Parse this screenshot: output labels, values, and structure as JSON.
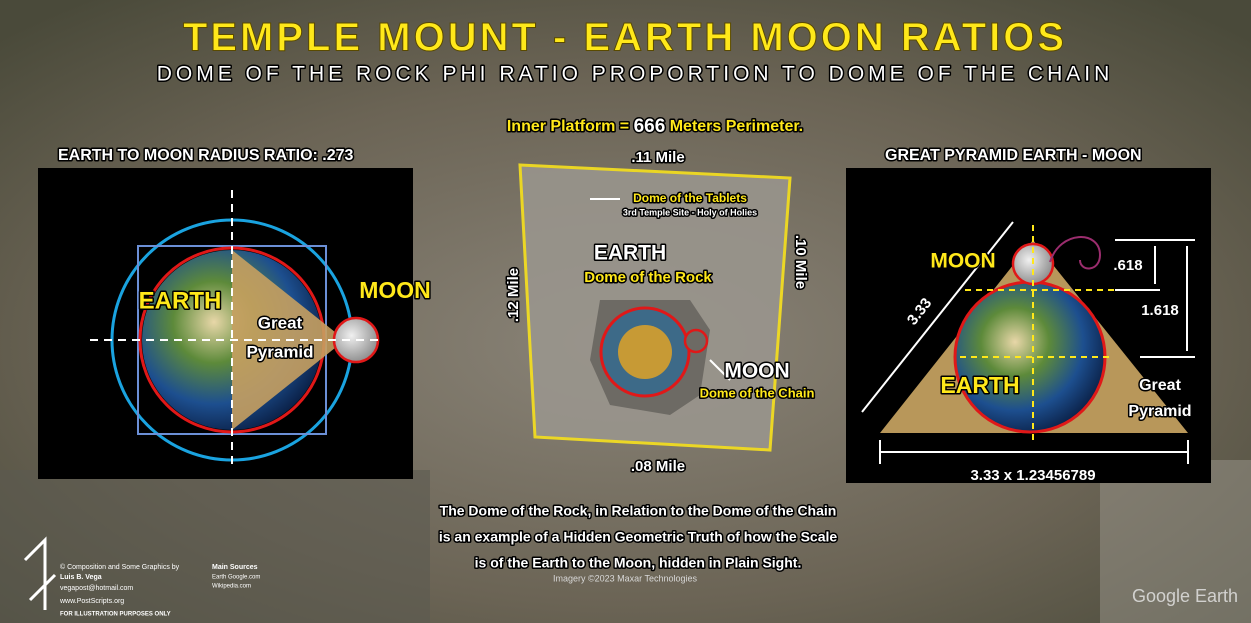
{
  "header": {
    "title": "TEMPLE MOUNT - EARTH MOON RATIOS",
    "subtitle": "DOME OF THE ROCK PHI RATIO PROPORTION TO DOME OF THE CHAIN",
    "platform_prefix": "Inner Platform =",
    "platform_number": "666",
    "platform_suffix": "Meters Perimeter."
  },
  "left_panel": {
    "title": "EARTH TO MOON RADIUS RATIO: .273",
    "earth": "EARTH",
    "moon": "MOON",
    "pyramid_line1": "Great",
    "pyramid_line2": "Pyramid"
  },
  "center_panel": {
    "top": ".11 Mile",
    "left": ".12 Mile",
    "right": ".10 Mile",
    "bottom": ".08 Mile",
    "tablets": "Dome of the Tablets",
    "tablets_sub": "3rd Temple Site - Holy of Holies",
    "earth": "EARTH",
    "earth_sub": "Dome of the Rock",
    "moon": "MOON",
    "moon_sub": "Dome of the Chain"
  },
  "right_panel": {
    "title": "GREAT PYRAMID EARTH - MOON",
    "moon": "MOON",
    "earth": "EARTH",
    "side": "3.33",
    "small": ".618",
    "large": "1.618",
    "pyramid_line1": "Great",
    "pyramid_line2": "Pyramid",
    "base": "3.33 x 1.23456789"
  },
  "caption": [
    "The Dome of the Rock, in Relation to the Dome of the Chain",
    "is an example of a Hidden Geometric Truth of how the Scale",
    "is of the Earth to the Moon, hidden in Plain Sight."
  ],
  "credits": {
    "line1": "© Composition and Some Graphics by",
    "author": "Luis B. Vega",
    "email": "vegapost@hotmail.com",
    "site": "www.PostScripts.org",
    "note": "FOR ILLUSTRATION PURPOSES ONLY",
    "sources_title": "Main Sources",
    "source1": "Earth Google.com",
    "source2": "Wikipedia.com"
  },
  "imagery": "Imagery ©2023 Maxar Technologies",
  "watermark": "Google Earth"
}
